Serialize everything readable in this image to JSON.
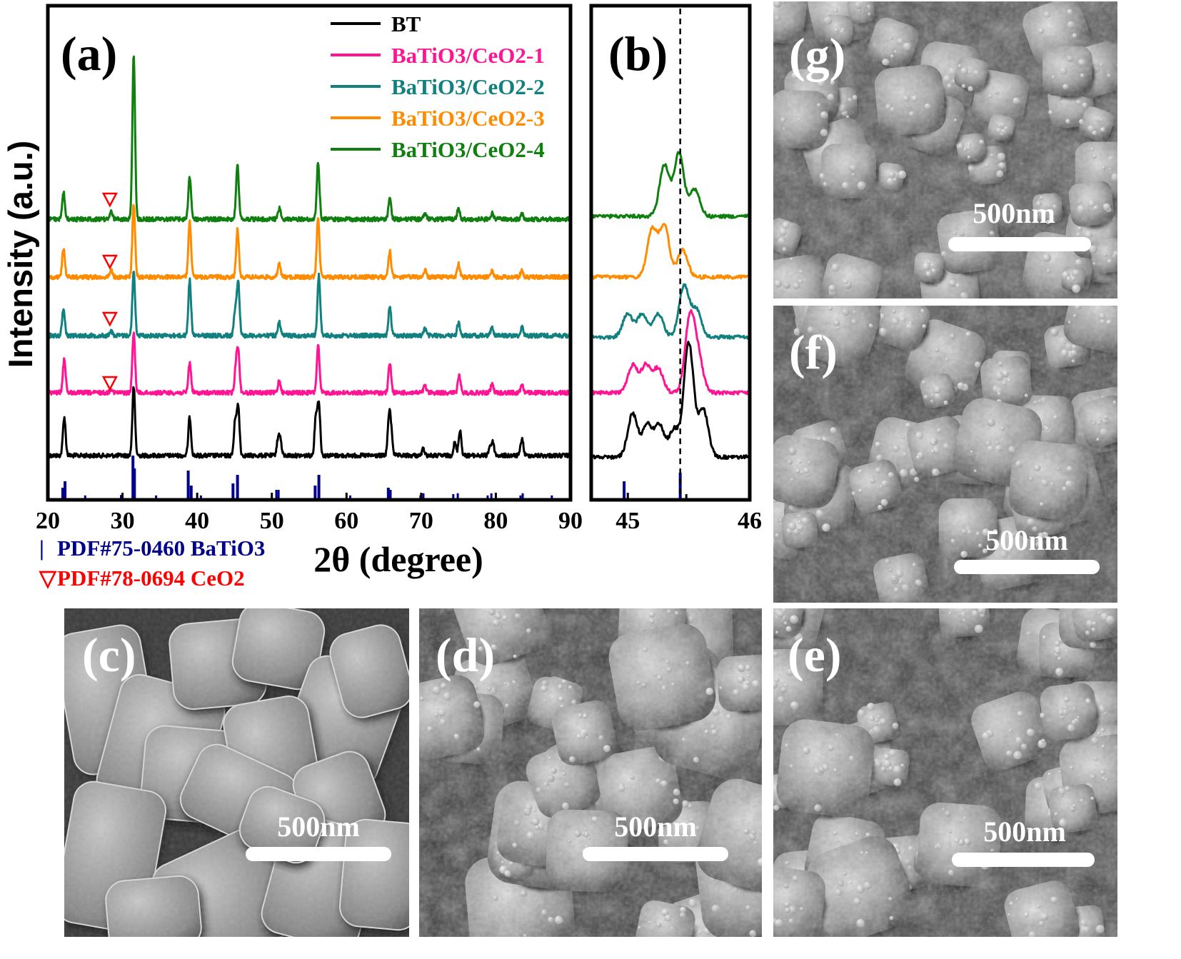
{
  "colors": {
    "BT": "#000000",
    "BaTiO3/CeO2-1": "#ff1493",
    "BaTiO3/CeO2-2": "#138080",
    "BaTiO3/CeO2-3": "#ff8c00",
    "BaTiO3/CeO2-4": "#0f7f0f",
    "ref_batio3": "#00008b",
    "ref_ceo2": "#ff0000"
  },
  "chart_data": [
    {
      "type": "line",
      "panel_label": "(a)",
      "xlabel": "2θ (degree)",
      "ylabel": "Intensity (a.u.)",
      "xlim": [
        20,
        90
      ],
      "xticks": [
        "20",
        "30",
        "40",
        "50",
        "60",
        "70",
        "80",
        "90"
      ],
      "series": [
        {
          "name": "BT",
          "peaks": [
            [
              22.2,
              0.45
            ],
            [
              31.5,
              0.8
            ],
            [
              39.0,
              0.45
            ],
            [
              45.1,
              0.4
            ],
            [
              45.5,
              0.55
            ],
            [
              50.8,
              0.15
            ],
            [
              51.1,
              0.2
            ],
            [
              55.9,
              0.45
            ],
            [
              56.3,
              0.6
            ],
            [
              65.7,
              0.45
            ],
            [
              66.0,
              0.25
            ],
            [
              70.3,
              0.08
            ],
            [
              74.5,
              0.15
            ],
            [
              75.2,
              0.3
            ],
            [
              79.2,
              0.1
            ],
            [
              79.6,
              0.15
            ],
            [
              83.5,
              0.2
            ]
          ]
        },
        {
          "name": "BaTiO3/CeO2-1",
          "peaks": [
            [
              22.2,
              0.4
            ],
            [
              28.5,
              0.05
            ],
            [
              31.5,
              0.7
            ],
            [
              39.0,
              0.35
            ],
            [
              45.2,
              0.3
            ],
            [
              45.5,
              0.45
            ],
            [
              51.0,
              0.15
            ],
            [
              56.2,
              0.55
            ],
            [
              65.8,
              0.35
            ],
            [
              70.5,
              0.08
            ],
            [
              75.1,
              0.2
            ],
            [
              79.5,
              0.1
            ],
            [
              83.5,
              0.1
            ]
          ]
        },
        {
          "name": "BaTiO3/CeO2-2",
          "peaks": [
            [
              22.1,
              0.32
            ],
            [
              28.5,
              0.05
            ],
            [
              31.5,
              0.75
            ],
            [
              39.0,
              0.65
            ],
            [
              45.1,
              0.3
            ],
            [
              45.5,
              0.62
            ],
            [
              51.0,
              0.15
            ],
            [
              56.3,
              0.7
            ],
            [
              65.8,
              0.35
            ],
            [
              70.5,
              0.08
            ],
            [
              75.0,
              0.15
            ],
            [
              79.5,
              0.1
            ],
            [
              83.5,
              0.1
            ]
          ]
        },
        {
          "name": "BaTiO3/CeO2-3",
          "peaks": [
            [
              22.1,
              0.34
            ],
            [
              28.5,
              0.08
            ],
            [
              31.5,
              0.85
            ],
            [
              39.0,
              0.65
            ],
            [
              45.4,
              0.55
            ],
            [
              51.0,
              0.15
            ],
            [
              56.2,
              0.7
            ],
            [
              65.8,
              0.3
            ],
            [
              70.5,
              0.08
            ],
            [
              75.0,
              0.15
            ],
            [
              79.5,
              0.08
            ],
            [
              83.5,
              0.08
            ]
          ]
        },
        {
          "name": "BaTiO3/CeO2-4",
          "peaks": [
            [
              22.1,
              0.38
            ],
            [
              28.5,
              0.1
            ],
            [
              31.5,
              2.3
            ],
            [
              39.0,
              0.6
            ],
            [
              45.4,
              0.75
            ],
            [
              51.0,
              0.15
            ],
            [
              56.2,
              0.8
            ],
            [
              65.8,
              0.3
            ],
            [
              70.5,
              0.08
            ],
            [
              75.0,
              0.15
            ],
            [
              79.5,
              0.08
            ],
            [
              83.5,
              0.08
            ]
          ]
        }
      ],
      "reference_batio3": [
        [
          22.0,
          0.25
        ],
        [
          22.3,
          0.4
        ],
        [
          25.0,
          0.07
        ],
        [
          29.8,
          0.08
        ],
        [
          31.4,
          1.0
        ],
        [
          31.6,
          0.7
        ],
        [
          34.5,
          0.07
        ],
        [
          38.8,
          0.65
        ],
        [
          39.2,
          0.3
        ],
        [
          40.5,
          0.07
        ],
        [
          44.8,
          0.35
        ],
        [
          45.4,
          0.55
        ],
        [
          50.6,
          0.2
        ],
        [
          50.9,
          0.2
        ],
        [
          55.8,
          0.3
        ],
        [
          56.3,
          0.55
        ],
        [
          60.5,
          0.07
        ],
        [
          65.6,
          0.25
        ],
        [
          65.9,
          0.2
        ],
        [
          69.9,
          0.07
        ],
        [
          70.3,
          0.12
        ],
        [
          74.3,
          0.1
        ],
        [
          74.9,
          0.12
        ],
        [
          78.9,
          0.07
        ],
        [
          79.4,
          0.12
        ],
        [
          83.3,
          0.07
        ],
        [
          83.6,
          0.12
        ],
        [
          87.5,
          0.07
        ]
      ],
      "ceo2_markers_x": 28.5,
      "legend": [
        "BT",
        "BaTiO3/CeO2-1",
        "BaTiO3/CeO2-2",
        "BaTiO3/CeO2-3",
        "BaTiO3/CeO2-4"
      ],
      "legend_position": "top-right",
      "reference_legend": [
        {
          "symbol": "|",
          "text": "PDF#75-0460 BaTiO3"
        },
        {
          "symbol": "▽",
          "text": "PDF#78-0694 CeO2"
        }
      ]
    },
    {
      "type": "line",
      "panel_label": "(b)",
      "xlim": [
        44.7,
        46.0
      ],
      "xticks": [
        "45",
        "46"
      ],
      "dashed_line_x": 45.43,
      "series": [
        {
          "name": "BT",
          "peaks": [
            [
              45.04,
              0.55
            ],
            [
              45.16,
              0.4
            ],
            [
              45.26,
              0.4
            ],
            [
              45.38,
              0.35
            ],
            [
              45.5,
              1.45
            ],
            [
              45.62,
              0.6
            ]
          ]
        },
        {
          "name": "BaTiO3/CeO2-1",
          "peaks": [
            [
              45.04,
              0.35
            ],
            [
              45.15,
              0.35
            ],
            [
              45.25,
              0.3
            ],
            [
              45.51,
              0.95
            ],
            [
              45.58,
              0.4
            ]
          ]
        },
        {
          "name": "BaTiO3/CeO2-2",
          "peaks": [
            [
              45.0,
              0.3
            ],
            [
              45.12,
              0.3
            ],
            [
              45.25,
              0.3
            ],
            [
              45.46,
              0.65
            ],
            [
              45.56,
              0.35
            ]
          ]
        },
        {
          "name": "BaTiO3/CeO2-3",
          "peaks": [
            [
              45.2,
              0.6
            ],
            [
              45.3,
              0.65
            ],
            [
              45.45,
              0.35
            ]
          ]
        },
        {
          "name": "BaTiO3/CeO2-4",
          "peaks": [
            [
              45.3,
              0.65
            ],
            [
              45.42,
              0.8
            ],
            [
              45.55,
              0.35
            ]
          ]
        }
      ],
      "reference_batio3": [
        [
          44.97,
          0.4
        ],
        [
          45.43,
          0.6
        ]
      ]
    }
  ],
  "sem": {
    "c": {
      "label": "(c)",
      "scale": "500nm"
    },
    "d": {
      "label": "(d)",
      "scale": "500nm"
    },
    "e": {
      "label": "(e)",
      "scale": "500nm"
    },
    "f": {
      "label": "(f)",
      "scale": "500nm"
    },
    "g": {
      "label": "(g)",
      "scale": "500nm"
    }
  }
}
